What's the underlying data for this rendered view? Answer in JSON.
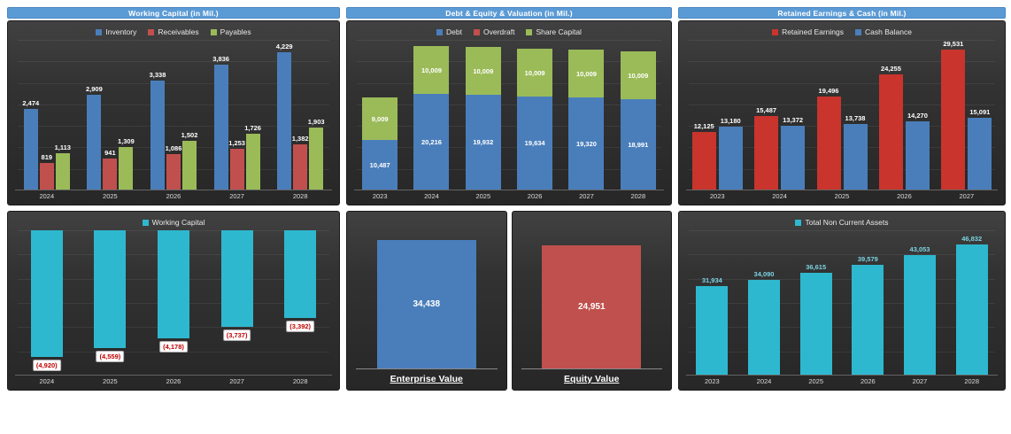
{
  "colors": {
    "header_bg": "#5b9bd5",
    "blue": "#4a7ebb",
    "red": "#c0504d",
    "bright_red": "#c9342c",
    "green": "#9bbb59",
    "cyan": "#2eb8cf",
    "negative_label": "#c00000"
  },
  "chart_data": [
    {
      "id": "working-capital-components",
      "header": "Working Capital (in Mil.)",
      "type": "grouped-bar",
      "legend_position": "top",
      "grid": true,
      "categories": [
        "2024",
        "2025",
        "2026",
        "2027",
        "2028"
      ],
      "series": [
        {
          "name": "Inventory",
          "color": "#4a7ebb",
          "values": [
            2474,
            2909,
            3338,
            3836,
            4229
          ]
        },
        {
          "name": "Receivables",
          "color": "#c0504d",
          "values": [
            819,
            941,
            1086,
            1253,
            1382
          ]
        },
        {
          "name": "Payables",
          "color": "#9bbb59",
          "values": [
            1113,
            1309,
            1502,
            1726,
            1903
          ]
        }
      ],
      "ymax": 4600,
      "value_labels": "above"
    },
    {
      "id": "debt-equity-valuation",
      "header": "Debt & Equity & Valuation (in Mil.)",
      "type": "stacked-bar",
      "legend_position": "top",
      "grid": true,
      "categories": [
        "2023",
        "2024",
        "2025",
        "2026",
        "2027",
        "2028"
      ],
      "series": [
        {
          "name": "Debt",
          "color": "#4a7ebb",
          "values": [
            10487,
            20216,
            19932,
            19634,
            19320,
            18991
          ]
        },
        {
          "name": "Overdraft",
          "color": "#c0504d",
          "values": [
            0,
            0,
            0,
            0,
            0,
            0
          ]
        },
        {
          "name": "Share Capital",
          "color": "#9bbb59",
          "values": [
            9009,
            10009,
            10009,
            10009,
            10009,
            10009
          ]
        }
      ],
      "ymax": 31500,
      "value_labels": "inside"
    },
    {
      "id": "retained-earnings-cash",
      "header": "Retained Earnings & Cash (in Mil.)",
      "type": "grouped-bar",
      "legend_position": "top",
      "grid": true,
      "categories": [
        "2023",
        "2024",
        "2025",
        "2026",
        "2027"
      ],
      "series": [
        {
          "name": "Retained Earnings",
          "color": "#c9342c",
          "values": [
            12125,
            15487,
            19496,
            24255,
            29531
          ]
        },
        {
          "name": "Cash Balance",
          "color": "#4a7ebb",
          "values": [
            13180,
            13372,
            13738,
            14270,
            15091
          ]
        }
      ],
      "ymax": 31500,
      "value_labels": "above"
    },
    {
      "id": "working-capital",
      "legend_title": "Working Capital",
      "type": "hanging-bar",
      "color": "#2eb8cf",
      "grid": true,
      "categories": [
        "2024",
        "2025",
        "2026",
        "2027",
        "2028"
      ],
      "values": [
        -4920,
        -4559,
        -4178,
        -3737,
        -3392
      ],
      "ymin": -5600,
      "value_labels": "below-negative-parentheses",
      "value_label_color": "#c00000"
    },
    {
      "id": "valuation",
      "type": "single-bars",
      "panels": [
        {
          "label": "Enterprise Value",
          "value": 34438,
          "color": "#4a7ebb"
        },
        {
          "label": "Equity Value",
          "value": 24951,
          "color": "#c0504d"
        }
      ],
      "value_labels": "inside-center"
    },
    {
      "id": "total-non-current-assets",
      "legend_title": "Total Non Current Assets",
      "type": "bar",
      "color": "#2eb8cf",
      "grid": true,
      "categories": [
        "2023",
        "2024",
        "2025",
        "2026",
        "2027",
        "2028"
      ],
      "values": [
        31934,
        34090,
        36615,
        39579,
        43053,
        46832
      ],
      "ymax": 52000,
      "value_labels": "above",
      "value_label_color": "#7cd3e2"
    }
  ]
}
